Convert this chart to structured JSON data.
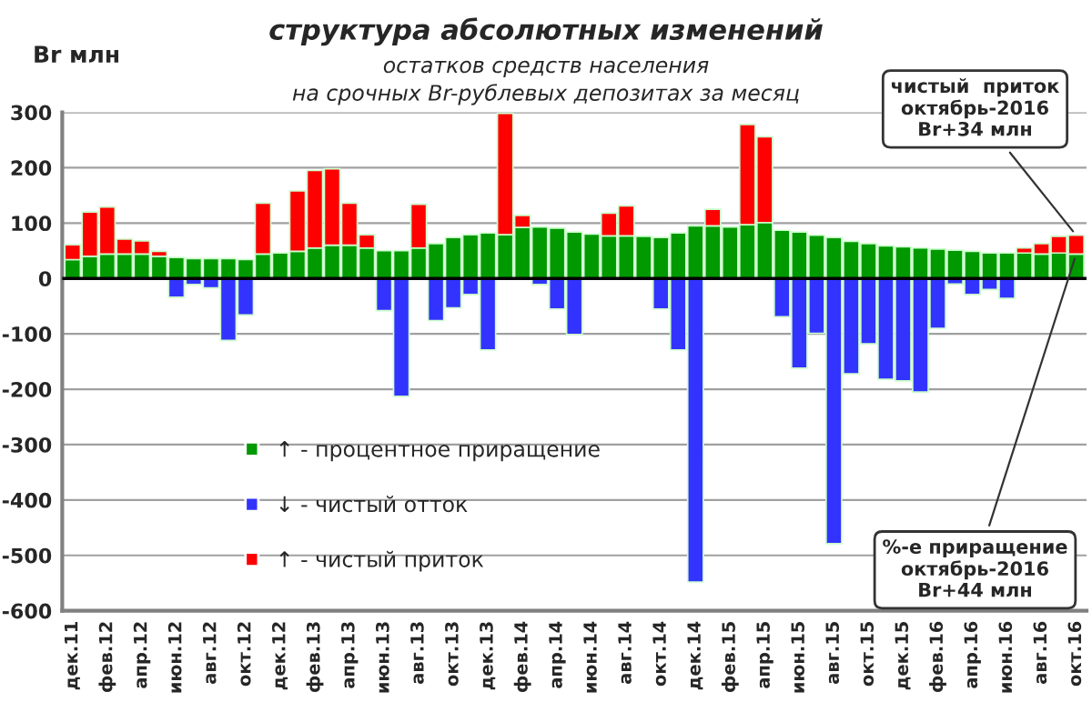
{
  "chart_data": {
    "type": "bar",
    "title": "структура абсолютных изменений",
    "subtitle": "остатков средств населения\nна срочных Br-рублевых депозитах за месяц",
    "ylabel": "Br млн",
    "categories": [
      "дек.11",
      null,
      "фев.12",
      null,
      "апр.12",
      null,
      "июн.12",
      null,
      "авг.12",
      null,
      "окт.12",
      null,
      "дек.12",
      null,
      "фев.13",
      null,
      "апр.13",
      null,
      "июн.13",
      null,
      "авг.13",
      null,
      "окт.13",
      null,
      "дек.13",
      null,
      "фев.14",
      null,
      "апр.14",
      null,
      "июн.14",
      null,
      "авг.14",
      null,
      "окт.14",
      null,
      "дек.14",
      null,
      "фев.15",
      null,
      "апр.15",
      null,
      "июн.15",
      null,
      "авг.15",
      null,
      "окт.15",
      null,
      "дек.15",
      null,
      "фев.16",
      null,
      "апр.16",
      null,
      "июн.16",
      null,
      "авг.16",
      null,
      "окт.16"
    ],
    "stacked": true,
    "series": [
      {
        "name": "↑ - процентное приращение",
        "color": "#009900",
        "values": [
          34,
          40,
          44,
          44,
          44,
          40,
          38,
          36,
          36,
          36,
          34,
          44,
          46,
          49,
          55,
          60,
          60,
          55,
          50,
          50,
          55,
          63,
          74,
          79,
          82,
          79,
          92,
          93,
          91,
          84,
          80,
          77,
          77,
          76,
          74,
          82,
          95,
          95,
          93,
          97,
          101,
          87,
          84,
          78,
          74,
          67,
          63,
          59,
          57,
          55,
          53,
          51,
          49,
          46,
          46,
          46,
          44,
          46,
          44
        ]
      },
      {
        "name": "↓ - чистый отток",
        "color": "#3333ff",
        "values": [
          null,
          null,
          null,
          null,
          null,
          null,
          -34,
          -11,
          -17,
          -112,
          -66,
          null,
          null,
          null,
          null,
          null,
          null,
          null,
          -58,
          -213,
          null,
          -76,
          -53,
          -29,
          -129,
          null,
          null,
          -11,
          -55,
          -101,
          null,
          null,
          null,
          null,
          -55,
          -129,
          -548,
          null,
          null,
          null,
          null,
          -69,
          -162,
          -99,
          -479,
          -172,
          -118,
          -182,
          -185,
          -205,
          -90,
          -10,
          -29,
          -20,
          -36,
          null,
          null,
          null,
          null
        ]
      },
      {
        "name": "↑ - чистый приток",
        "color": "#ff0000",
        "values": [
          27,
          80,
          85,
          27,
          24,
          9,
          null,
          null,
          null,
          null,
          null,
          92,
          null,
          109,
          140,
          138,
          76,
          24,
          null,
          null,
          79,
          null,
          null,
          null,
          null,
          219,
          22,
          null,
          null,
          null,
          null,
          41,
          54,
          null,
          null,
          null,
          null,
          30,
          null,
          181,
          155,
          null,
          null,
          null,
          null,
          null,
          null,
          null,
          null,
          null,
          null,
          null,
          null,
          null,
          null,
          9,
          19,
          30,
          34
        ]
      }
    ],
    "ylim": [
      -600,
      300
    ],
    "yticks": [
      -600,
      -500,
      -400,
      -300,
      -200,
      -100,
      0,
      100,
      200,
      300
    ],
    "grid": "y",
    "ref_lines": [
      {
        "axis": "y",
        "value": 0,
        "color": "#000000"
      }
    ],
    "legend": "bottom left",
    "annotations": [
      {
        "text": "чистый  приток\nоктябрь-2016\nBr+34 млн",
        "x": "окт.16",
        "y": 78
      },
      {
        "text": "%-е приращение\nоктябрь-2016\nBr+44 млн",
        "x": "окт.16",
        "y": 44
      }
    ]
  }
}
